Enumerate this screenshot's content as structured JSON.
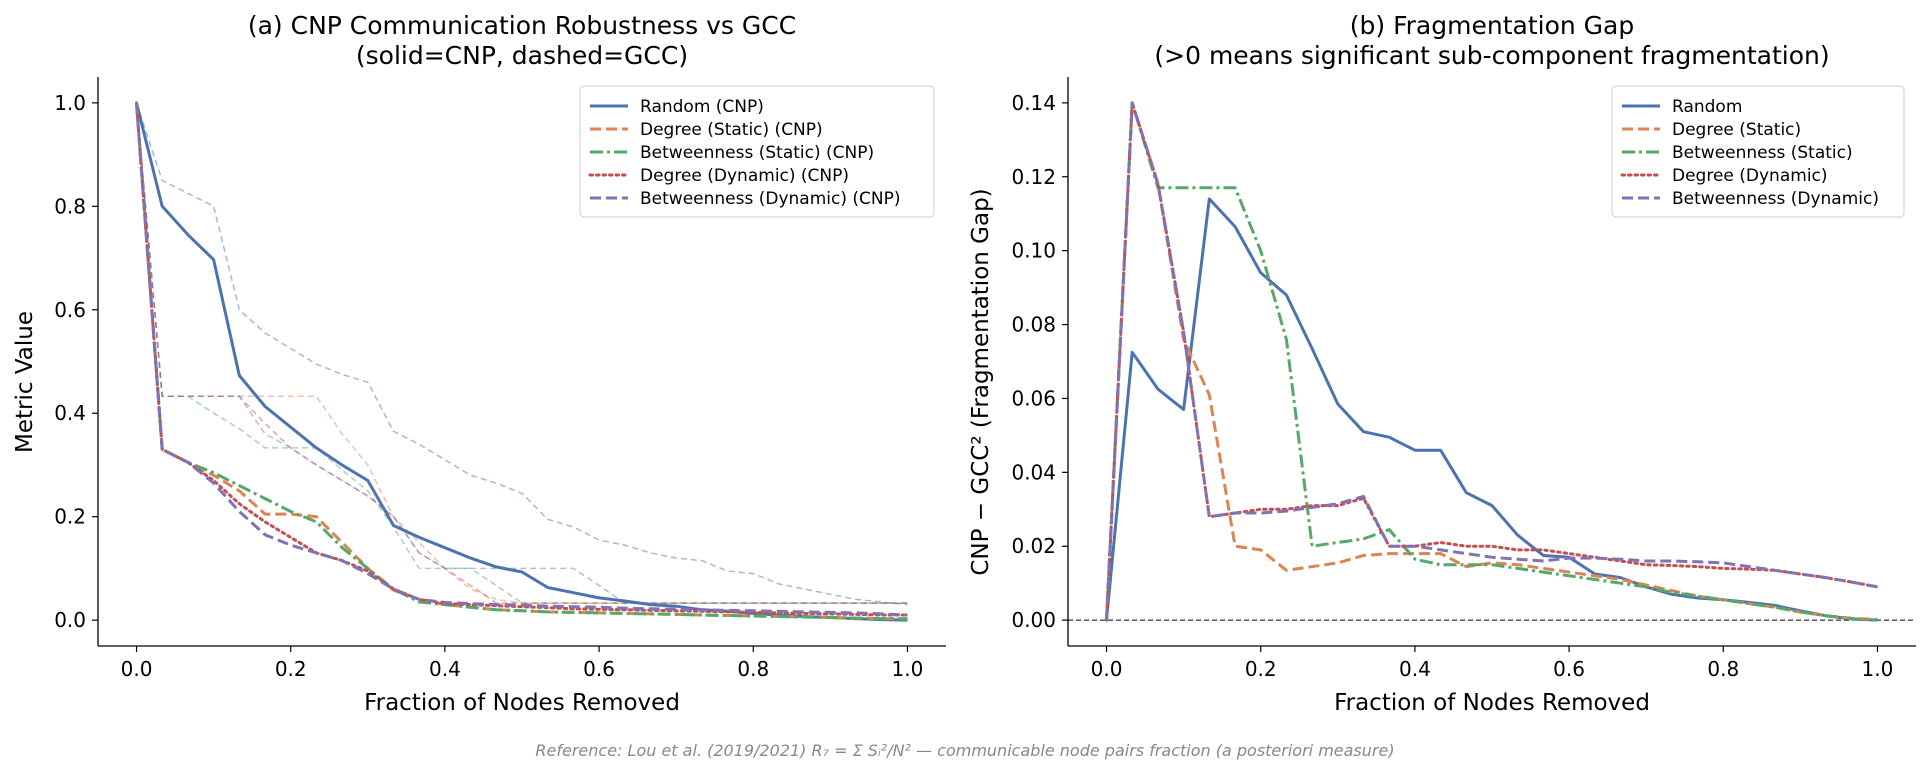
{
  "reference": "Reference: Lou et al. (2019/2021) R₇ = Σ Sᵢ²/N² — communicable node pairs fraction (a posteriori measure)",
  "styles": {
    "Random": {
      "color": "#4c72b0",
      "dash": "solid"
    },
    "Degree (Static)": {
      "color": "#dd8452",
      "dash": "dashed"
    },
    "Betweenness (Static)": {
      "color": "#55a868",
      "dash": "dashdot"
    },
    "Degree (Dynamic)": {
      "color": "#c44e52",
      "dash": "dotted"
    },
    "Betweenness (Dynamic)": {
      "color": "#8172b3",
      "dash": "dashed"
    }
  },
  "chart_data": [
    {
      "type": "line",
      "title_line1": "(a) CNP Communication Robustness vs GCC",
      "title_line2": "(solid=CNP, dashed=GCC)",
      "xlabel": "Fraction of Nodes Removed",
      "ylabel": "Metric Value",
      "xlim": [
        -0.05,
        1.05
      ],
      "ylim": [
        -0.05,
        1.05
      ],
      "xticks": [
        0.0,
        0.2,
        0.4,
        0.6,
        0.8,
        1.0
      ],
      "yticks": [
        0.0,
        0.2,
        0.4,
        0.6,
        0.8,
        1.0
      ],
      "tick_decimals": 1,
      "legend_position": "top-right",
      "x": [
        0.0,
        0.0333,
        0.0667,
        0.1,
        0.1333,
        0.1667,
        0.2,
        0.2333,
        0.2667,
        0.3,
        0.3333,
        0.3667,
        0.4,
        0.4333,
        0.4667,
        0.5,
        0.5333,
        0.5667,
        0.6,
        0.6333,
        0.6667,
        0.7,
        0.7333,
        0.7667,
        0.8,
        0.8333,
        0.8667,
        0.9,
        0.9333,
        0.9667,
        1.0
      ],
      "series": [
        {
          "name": "Random (CNP)",
          "style": "Random",
          "values": [
            1.0,
            0.8,
            0.745,
            0.697,
            0.473,
            0.413,
            0.373,
            0.333,
            0.3,
            0.27,
            0.183,
            0.16,
            0.14,
            0.12,
            0.103,
            0.093,
            0.063,
            0.053,
            0.043,
            0.037,
            0.03,
            0.027,
            0.02,
            0.017,
            0.013,
            0.01,
            0.007,
            0.005,
            0.003,
            0.001,
            0.0
          ]
        },
        {
          "name": "Degree (Static) (CNP)",
          "style": "Degree (Static)",
          "values": [
            1.0,
            0.33,
            0.305,
            0.28,
            0.25,
            0.205,
            0.205,
            0.2,
            0.15,
            0.1,
            0.058,
            0.04,
            0.03,
            0.025,
            0.02,
            0.018,
            0.016,
            0.015,
            0.014,
            0.013,
            0.012,
            0.011,
            0.01,
            0.009,
            0.008,
            0.007,
            0.006,
            0.005,
            0.004,
            0.003,
            0.003
          ]
        },
        {
          "name": "Betweenness (Static) (CNP)",
          "style": "Betweenness (Static)",
          "values": [
            1.0,
            0.33,
            0.305,
            0.285,
            0.26,
            0.235,
            0.21,
            0.19,
            0.14,
            0.1,
            0.06,
            0.035,
            0.03,
            0.025,
            0.02,
            0.018,
            0.016,
            0.015,
            0.014,
            0.013,
            0.012,
            0.011,
            0.01,
            0.009,
            0.008,
            0.007,
            0.006,
            0.005,
            0.004,
            0.003,
            0.002
          ]
        },
        {
          "name": "Degree (Dynamic) (CNP)",
          "style": "Degree (Dynamic)",
          "values": [
            1.0,
            0.33,
            0.305,
            0.27,
            0.225,
            0.19,
            0.16,
            0.13,
            0.115,
            0.095,
            0.06,
            0.04,
            0.032,
            0.03,
            0.028,
            0.026,
            0.024,
            0.022,
            0.021,
            0.02,
            0.019,
            0.018,
            0.017,
            0.016,
            0.015,
            0.014,
            0.013,
            0.012,
            0.011,
            0.01,
            0.01
          ]
        },
        {
          "name": "Betweenness (Dynamic) (CNP)",
          "style": "Betweenness (Dynamic)",
          "values": [
            1.0,
            0.33,
            0.305,
            0.265,
            0.21,
            0.165,
            0.145,
            0.13,
            0.115,
            0.09,
            0.06,
            0.04,
            0.034,
            0.032,
            0.03,
            0.029,
            0.027,
            0.026,
            0.025,
            0.023,
            0.022,
            0.021,
            0.02,
            0.019,
            0.018,
            0.017,
            0.016,
            0.015,
            0.014,
            0.012,
            0.01
          ]
        },
        {
          "name": "Random (GCC)",
          "style": "Random",
          "dash": "thin-dashed",
          "opacity": 0.5,
          "in_legend": false,
          "values": [
            1.0,
            0.85,
            0.825,
            0.8,
            0.6,
            0.555,
            0.525,
            0.495,
            0.475,
            0.46,
            0.365,
            0.34,
            0.31,
            0.28,
            0.265,
            0.245,
            0.195,
            0.18,
            0.155,
            0.145,
            0.13,
            0.12,
            0.115,
            0.095,
            0.09,
            0.07,
            0.06,
            0.05,
            0.04,
            0.035,
            0.03
          ]
        },
        {
          "name": "Degree (Static) (GCC)",
          "style": "Degree (Static)",
          "dash": "thin-dashed",
          "opacity": 0.5,
          "in_legend": false,
          "values": [
            1.0,
            0.433,
            0.433,
            0.433,
            0.433,
            0.433,
            0.433,
            0.433,
            0.36,
            0.3,
            0.2,
            0.15,
            0.1,
            0.06,
            0.04,
            0.033,
            0.033,
            0.033,
            0.033,
            0.033,
            0.033,
            0.033,
            0.033,
            0.033,
            0.033,
            0.033,
            0.033,
            0.033,
            0.033,
            0.033,
            0.033
          ]
        },
        {
          "name": "Betweenness (Static) (GCC)",
          "style": "Betweenness (Static)",
          "dash": "thin-dashed",
          "opacity": 0.5,
          "in_legend": false,
          "values": [
            1.0,
            0.433,
            0.433,
            0.4,
            0.37,
            0.333,
            0.333,
            0.333,
            0.29,
            0.25,
            0.18,
            0.1,
            0.1,
            0.1,
            0.067,
            0.033,
            0.033,
            0.033,
            0.033,
            0.033,
            0.033,
            0.033,
            0.033,
            0.033,
            0.033,
            0.033,
            0.033,
            0.033,
            0.033,
            0.033,
            0.033
          ]
        },
        {
          "name": "Degree (Dynamic) (GCC)",
          "style": "Degree (Dynamic)",
          "dash": "thin-dashed",
          "opacity": 0.5,
          "in_legend": false,
          "values": [
            1.0,
            0.433,
            0.433,
            0.433,
            0.433,
            0.38,
            0.333,
            0.3,
            0.27,
            0.24,
            0.2,
            0.13,
            0.1,
            0.067,
            0.033,
            0.033,
            0.033,
            0.033,
            0.033,
            0.033,
            0.033,
            0.033,
            0.033,
            0.033,
            0.033,
            0.033,
            0.033,
            0.033,
            0.033,
            0.033,
            0.033
          ]
        },
        {
          "name": "Betweenness (Dynamic) (GCC)",
          "style": "Betweenness (Dynamic)",
          "dash": "thin-dashed",
          "opacity": 0.5,
          "in_legend": false,
          "values": [
            1.0,
            0.433,
            0.433,
            0.433,
            0.433,
            0.36,
            0.333,
            0.3,
            0.27,
            0.24,
            0.2,
            0.13,
            0.1,
            0.1,
            0.1,
            0.1,
            0.1,
            0.1,
            0.067,
            0.033,
            0.033,
            0.033,
            0.033,
            0.033,
            0.033,
            0.033,
            0.033,
            0.033,
            0.033,
            0.033,
            0.033
          ]
        }
      ]
    },
    {
      "type": "line",
      "title_line1": "(b) Fragmentation Gap",
      "title_line2": "(>0 means significant sub-component fragmentation)",
      "xlabel": "Fraction of Nodes Removed",
      "ylabel": "CNP − GCC²  (Fragmentation Gap)",
      "xlim": [
        -0.05,
        1.05
      ],
      "ylim": [
        -0.007,
        0.147
      ],
      "xticks": [
        0.0,
        0.2,
        0.4,
        0.6,
        0.8,
        1.0
      ],
      "yticks": [
        0.0,
        0.02,
        0.04,
        0.06,
        0.08,
        0.1,
        0.12,
        0.14
      ],
      "tick_decimals": 2,
      "xtick_decimals": 1,
      "zero_line": true,
      "legend_position": "top-right",
      "x": [
        0.0,
        0.0333,
        0.0667,
        0.1,
        0.1333,
        0.1667,
        0.2,
        0.2333,
        0.2667,
        0.3,
        0.3333,
        0.3667,
        0.4,
        0.4333,
        0.4667,
        0.5,
        0.5333,
        0.5667,
        0.6,
        0.6333,
        0.6667,
        0.7,
        0.7333,
        0.7667,
        0.8,
        0.8333,
        0.8667,
        0.9,
        0.9333,
        0.9667,
        1.0
      ],
      "series": [
        {
          "name": "Random",
          "style": "Random",
          "values": [
            0.0,
            0.0725,
            0.0625,
            0.057,
            0.114,
            0.1065,
            0.094,
            0.088,
            0.0735,
            0.0585,
            0.051,
            0.0495,
            0.046,
            0.046,
            0.0345,
            0.031,
            0.023,
            0.0175,
            0.017,
            0.0125,
            0.0115,
            0.009,
            0.007,
            0.006,
            0.0055,
            0.0048,
            0.004,
            0.0025,
            0.0012,
            0.0003,
            0.0
          ]
        },
        {
          "name": "Degree (Static)",
          "style": "Degree (Static)",
          "values": [
            0.0,
            0.14,
            0.118,
            0.076,
            0.061,
            0.02,
            0.019,
            0.0135,
            0.0145,
            0.0155,
            0.0175,
            0.018,
            0.018,
            0.018,
            0.0145,
            0.0155,
            0.015,
            0.014,
            0.013,
            0.012,
            0.011,
            0.0095,
            0.008,
            0.0065,
            0.0055,
            0.0045,
            0.0035,
            0.0022,
            0.0012,
            0.0005,
            0.0002
          ]
        },
        {
          "name": "Betweenness (Static)",
          "style": "Betweenness (Static)",
          "values": [
            0.0,
            0.14,
            0.117,
            0.117,
            0.117,
            0.117,
            0.1,
            0.076,
            0.02,
            0.021,
            0.022,
            0.0245,
            0.0165,
            0.015,
            0.015,
            0.015,
            0.014,
            0.013,
            0.012,
            0.011,
            0.01,
            0.009,
            0.0075,
            0.0065,
            0.0055,
            0.0045,
            0.0035,
            0.0022,
            0.0012,
            0.0004,
            0.0
          ]
        },
        {
          "name": "Degree (Dynamic)",
          "style": "Degree (Dynamic)",
          "values": [
            0.0,
            0.14,
            0.118,
            0.078,
            0.028,
            0.029,
            0.03,
            0.03,
            0.031,
            0.031,
            0.033,
            0.02,
            0.02,
            0.021,
            0.02,
            0.02,
            0.019,
            0.019,
            0.018,
            0.017,
            0.016,
            0.015,
            0.0148,
            0.0145,
            0.014,
            0.0138,
            0.0135,
            0.0125,
            0.0115,
            0.0103,
            0.009
          ]
        },
        {
          "name": "Betweenness (Dynamic)",
          "style": "Betweenness (Dynamic)",
          "values": [
            0.0,
            0.14,
            0.118,
            0.078,
            0.028,
            0.029,
            0.029,
            0.0295,
            0.0305,
            0.0315,
            0.0335,
            0.02,
            0.02,
            0.019,
            0.018,
            0.017,
            0.0165,
            0.016,
            0.0168,
            0.0168,
            0.0165,
            0.016,
            0.016,
            0.0158,
            0.0155,
            0.0145,
            0.0135,
            0.0125,
            0.0115,
            0.0103,
            0.009
          ]
        }
      ]
    }
  ]
}
